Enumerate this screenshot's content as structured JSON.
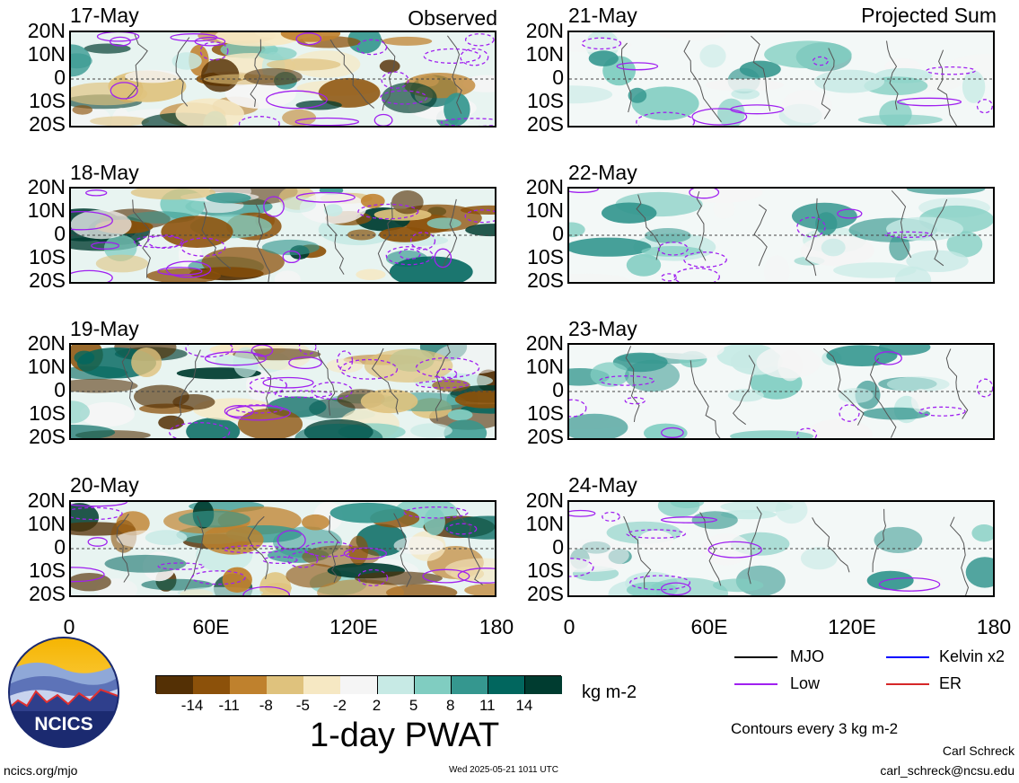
{
  "headers": {
    "observed": "Observed",
    "projected": "Projected Sum"
  },
  "observed_dates": [
    "17-May",
    "18-May",
    "19-May",
    "20-May"
  ],
  "projected_dates": [
    "21-May",
    "22-May",
    "23-May",
    "24-May"
  ],
  "lat_labels": [
    "20N",
    "10N",
    "0",
    "10S",
    "20S"
  ],
  "lon_labels": [
    "0",
    "60E",
    "120E",
    "180"
  ],
  "colorbar": {
    "unit": "kg m-2",
    "title": "1-day PWAT",
    "ticks": [
      "-14",
      "-11",
      "-8",
      "-5",
      "-2",
      "2",
      "5",
      "8",
      "11",
      "14"
    ],
    "colors": [
      "#543005",
      "#8c510a",
      "#bf812d",
      "#dfc27d",
      "#f6e8c3",
      "#f5f5f5",
      "#c7eae5",
      "#80cdc1",
      "#35978f",
      "#01665e",
      "#003c30"
    ]
  },
  "legend": {
    "items": [
      {
        "label": "MJO",
        "color": "#000000"
      },
      {
        "label": "Kelvin x2",
        "color": "#0000ff"
      },
      {
        "label": "Low",
        "color": "#a020f0"
      },
      {
        "label": "ER",
        "color": "#d62728"
      }
    ],
    "contour_note": "Contours every 3 kg m-2"
  },
  "logo_text": "NCICS",
  "footer": {
    "url": "ncics.org/mjo",
    "timestamp": "Wed 2025-05-21 1011 UTC",
    "author": "Carl Schreck",
    "email": "carl_schreck@ncsu.edu"
  },
  "chart_data": {
    "type": "heatmap",
    "variable": "1-day PWAT",
    "unit": "kg m-2",
    "x_range": [
      0,
      180
    ],
    "y_range": [
      -20,
      20
    ],
    "x_ticks": [
      "0",
      "60E",
      "120E",
      "180"
    ],
    "y_ticks": [
      "20N",
      "10N",
      "0",
      "10S",
      "20S"
    ],
    "levels": [
      -14,
      -11,
      -8,
      -5,
      -2,
      2,
      5,
      8,
      11,
      14
    ],
    "panels": [
      {
        "date": "17-May",
        "group": "Observed"
      },
      {
        "date": "18-May",
        "group": "Observed"
      },
      {
        "date": "19-May",
        "group": "Observed"
      },
      {
        "date": "20-May",
        "group": "Observed"
      },
      {
        "date": "21-May",
        "group": "Projected Sum"
      },
      {
        "date": "22-May",
        "group": "Projected Sum"
      },
      {
        "date": "23-May",
        "group": "Projected Sum"
      },
      {
        "date": "24-May",
        "group": "Projected Sum"
      }
    ],
    "contours": [
      "MJO",
      "Kelvin x2",
      "Low",
      "ER"
    ],
    "contour_interval": "Contours every 3 kg m-2"
  }
}
